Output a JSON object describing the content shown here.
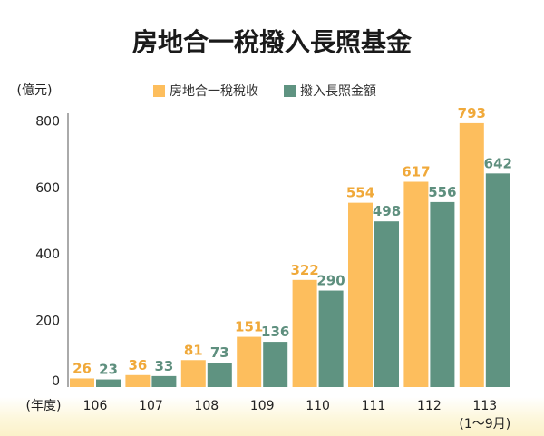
{
  "chart_data": {
    "type": "bar",
    "title": "房地合一稅撥入長照基金",
    "ylabel": "(億元)",
    "xlabel": "(年度)",
    "categories": [
      "106",
      "107",
      "108",
      "109",
      "110",
      "111",
      "112",
      "113"
    ],
    "category_note": {
      "index": 7,
      "text": "(1～9月)"
    },
    "yticks": [
      "0",
      "200",
      "400",
      "600",
      "800"
    ],
    "ylim": [
      0,
      820
    ],
    "grid": false,
    "legend_position": "top-right",
    "series": [
      {
        "name": "房地合一稅稅收",
        "color": "#fdbe5d",
        "label_color": "#f0a93a",
        "values": [
          26,
          36,
          81,
          151,
          322,
          554,
          617,
          793
        ]
      },
      {
        "name": "撥入長照金額",
        "color": "#5f9381",
        "label_color": "#5e8f7e",
        "values": [
          23,
          33,
          73,
          136,
          290,
          498,
          556,
          642
        ]
      }
    ]
  }
}
